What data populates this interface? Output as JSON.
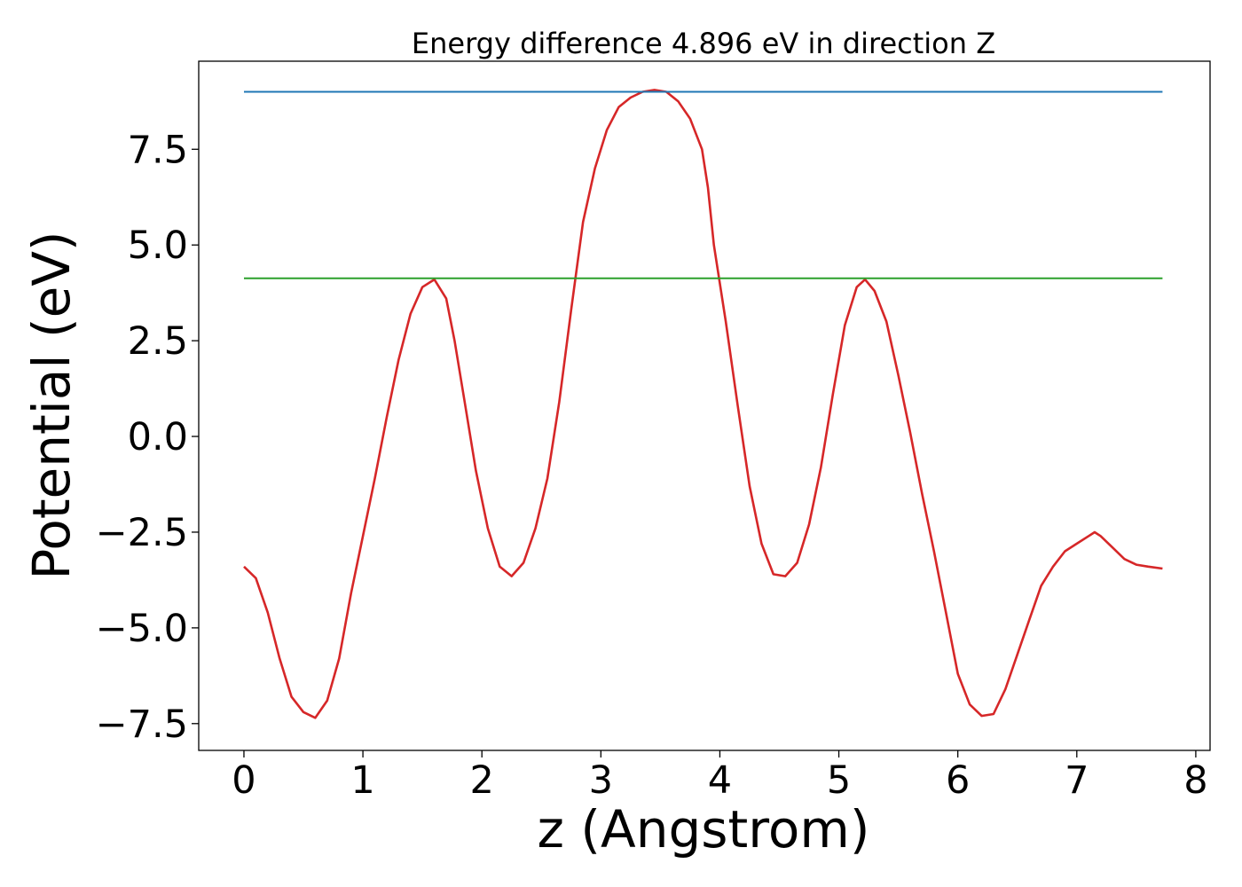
{
  "chart_data": {
    "type": "line",
    "title": "Energy difference 4.896 eV in direction Z",
    "xlabel": "z (Angstrom)",
    "ylabel": "Potential (eV)",
    "xlim": [
      -0.38,
      8.12
    ],
    "ylim": [
      -8.2,
      9.8
    ],
    "xticks": [
      0,
      1,
      2,
      3,
      4,
      5,
      6,
      7,
      8
    ],
    "xtick_labels": [
      "0",
      "1",
      "2",
      "3",
      "4",
      "5",
      "6",
      "7",
      "8"
    ],
    "yticks": [
      -7.5,
      -5.0,
      -2.5,
      0.0,
      2.5,
      5.0,
      7.5
    ],
    "ytick_labels": [
      "−7.5",
      "−5.0",
      "−2.5",
      "0.0",
      "2.5",
      "5.0",
      "7.5"
    ],
    "grid": false,
    "series": [
      {
        "color": "#d62728",
        "x": [
          0.0,
          0.1,
          0.2,
          0.3,
          0.4,
          0.5,
          0.6,
          0.7,
          0.8,
          0.9,
          1.0,
          1.1,
          1.2,
          1.3,
          1.4,
          1.5,
          1.6,
          1.7,
          1.77,
          1.85,
          1.95,
          2.05,
          2.15,
          2.25,
          2.35,
          2.45,
          2.55,
          2.65,
          2.75,
          2.85,
          2.95,
          3.05,
          3.15,
          3.25,
          3.35,
          3.45,
          3.55,
          3.65,
          3.75,
          3.85,
          3.9,
          3.95,
          4.05,
          4.15,
          4.25,
          4.35,
          4.45,
          4.55,
          4.65,
          4.75,
          4.85,
          4.95,
          5.05,
          5.15,
          5.22,
          5.3,
          5.4,
          5.5,
          5.6,
          5.7,
          5.8,
          5.9,
          6.0,
          6.1,
          6.2,
          6.3,
          6.4,
          6.5,
          6.6,
          6.7,
          6.8,
          6.9,
          7.0,
          7.1,
          7.15,
          7.2,
          7.3,
          7.4,
          7.5,
          7.6,
          7.72
        ],
        "y": [
          -3.4,
          -3.7,
          -4.6,
          -5.8,
          -6.8,
          -7.2,
          -7.35,
          -6.9,
          -5.8,
          -4.1,
          -2.6,
          -1.1,
          0.5,
          2.0,
          3.2,
          3.9,
          4.1,
          3.6,
          2.5,
          1.0,
          -0.9,
          -2.4,
          -3.4,
          -3.65,
          -3.3,
          -2.4,
          -1.1,
          0.9,
          3.3,
          5.6,
          7.0,
          8.0,
          8.6,
          8.85,
          9.0,
          9.05,
          9.0,
          8.75,
          8.3,
          7.5,
          6.5,
          5.0,
          3.0,
          0.8,
          -1.3,
          -2.8,
          -3.6,
          -3.65,
          -3.3,
          -2.3,
          -0.8,
          1.1,
          2.9,
          3.9,
          4.1,
          3.8,
          3.0,
          1.6,
          0.1,
          -1.5,
          -3.0,
          -4.6,
          -6.2,
          -7.0,
          -7.3,
          -7.25,
          -6.6,
          -5.7,
          -4.8,
          -3.9,
          -3.4,
          -3.0,
          -2.8,
          -2.6,
          -2.5,
          -2.6,
          -2.9,
          -3.2,
          -3.35,
          -3.4,
          -3.45
        ]
      },
      {
        "color": "#1f77b4",
        "x": [
          0.0,
          7.72
        ],
        "y": [
          9.0,
          9.0
        ]
      },
      {
        "color": "#2ca02c",
        "x": [
          0.0,
          7.72
        ],
        "y": [
          4.13,
          4.13
        ]
      }
    ]
  }
}
